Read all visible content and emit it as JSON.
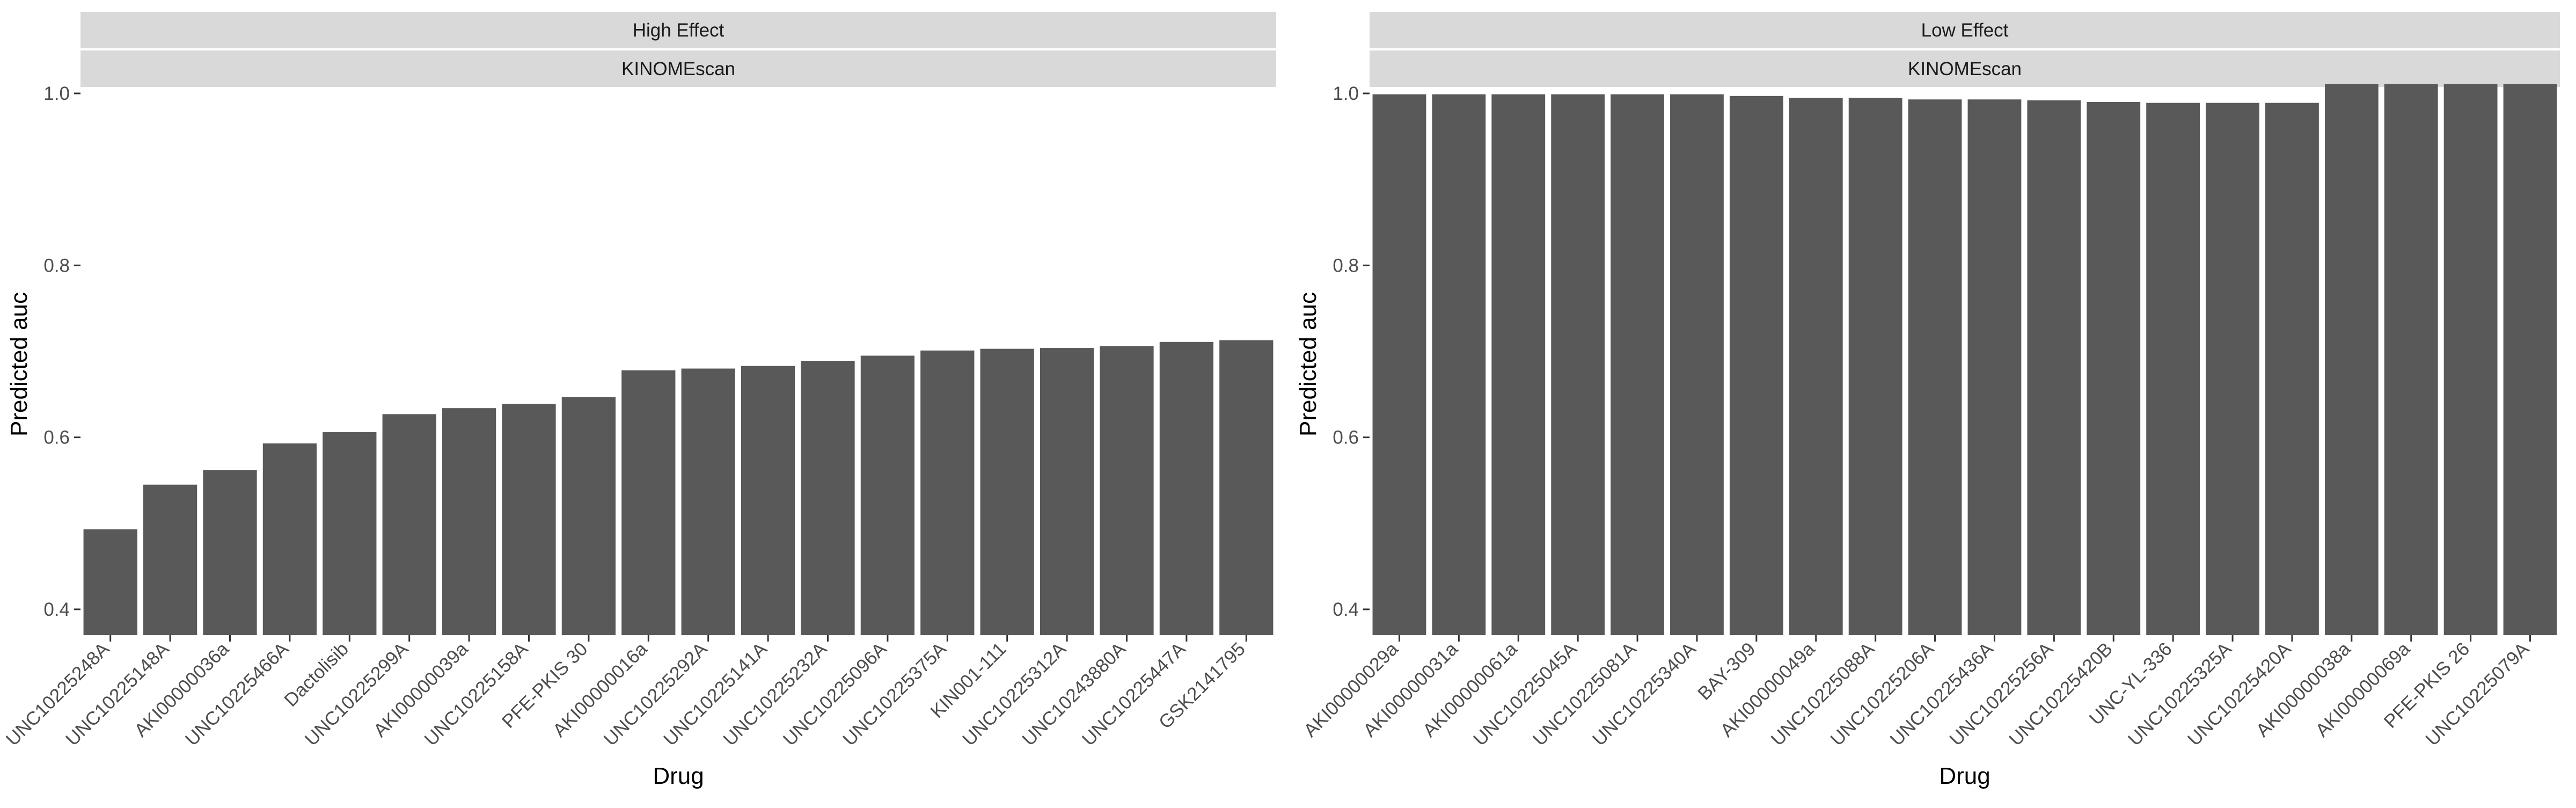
{
  "chart_data": [
    {
      "type": "bar",
      "strip_labels": [
        "High Effect",
        "KINOMEscan"
      ],
      "xlabel": "Drug",
      "ylabel": "Predicted auc",
      "ylim": [
        0.37,
        1.0
      ],
      "yticks": [
        0.4,
        0.6,
        0.8,
        1.0
      ],
      "ytick_labels": [
        "0.4",
        "0.6",
        "0.8",
        "1.0"
      ],
      "grid": false,
      "bar_color": "#595959",
      "categories": [
        "UNC10225248A",
        "UNC10225148A",
        "AKI00000036a",
        "UNC10225466A",
        "Dactolisib",
        "UNC10225299A",
        "AKI00000039a",
        "UNC10225158A",
        "PFE-PKIS 30",
        "AKI00000016a",
        "UNC10225292A",
        "UNC10225141A",
        "UNC10225232A",
        "UNC10225096A",
        "UNC10225375A",
        "KIN001-111",
        "UNC10225312A",
        "UNC10243880A",
        "UNC10225447A",
        "GSK2141795"
      ],
      "values": [
        0.493,
        0.545,
        0.562,
        0.593,
        0.606,
        0.627,
        0.634,
        0.639,
        0.647,
        0.678,
        0.68,
        0.683,
        0.689,
        0.695,
        0.701,
        0.703,
        0.704,
        0.706,
        0.711,
        0.713
      ]
    },
    {
      "type": "bar",
      "strip_labels": [
        "Low Effect",
        "KINOMEscan"
      ],
      "xlabel": "Drug",
      "ylabel": "Predicted auc",
      "ylim": [
        0.37,
        1.0
      ],
      "yticks": [
        0.4,
        0.6,
        0.8,
        1.0
      ],
      "ytick_labels": [
        "0.4",
        "0.6",
        "0.8",
        "1.0"
      ],
      "grid": false,
      "bar_color": "#595959",
      "categories": [
        "AKI00000029a",
        "AKI00000031a",
        "AKI00000061a",
        "UNC10225045A",
        "UNC10225081A",
        "UNC10225340A",
        "BAY-309",
        "AKI00000049a",
        "UNC10225088A",
        "UNC10225206A",
        "UNC10225436A",
        "UNC10225256A",
        "UNC10225420B",
        "UNC-YL-336",
        "UNC10225325A",
        "UNC10225420A",
        "AKI00000038a",
        "AKI00000069a",
        "PFE-PKIS 26",
        "UNC10225079A"
      ],
      "values": [
        0.999,
        0.999,
        0.999,
        0.999,
        0.999,
        0.999,
        0.997,
        0.995,
        0.995,
        0.993,
        0.993,
        0.992,
        0.99,
        0.989,
        0.989,
        0.989,
        1.011,
        1.011,
        1.011,
        1.011
      ]
    }
  ]
}
